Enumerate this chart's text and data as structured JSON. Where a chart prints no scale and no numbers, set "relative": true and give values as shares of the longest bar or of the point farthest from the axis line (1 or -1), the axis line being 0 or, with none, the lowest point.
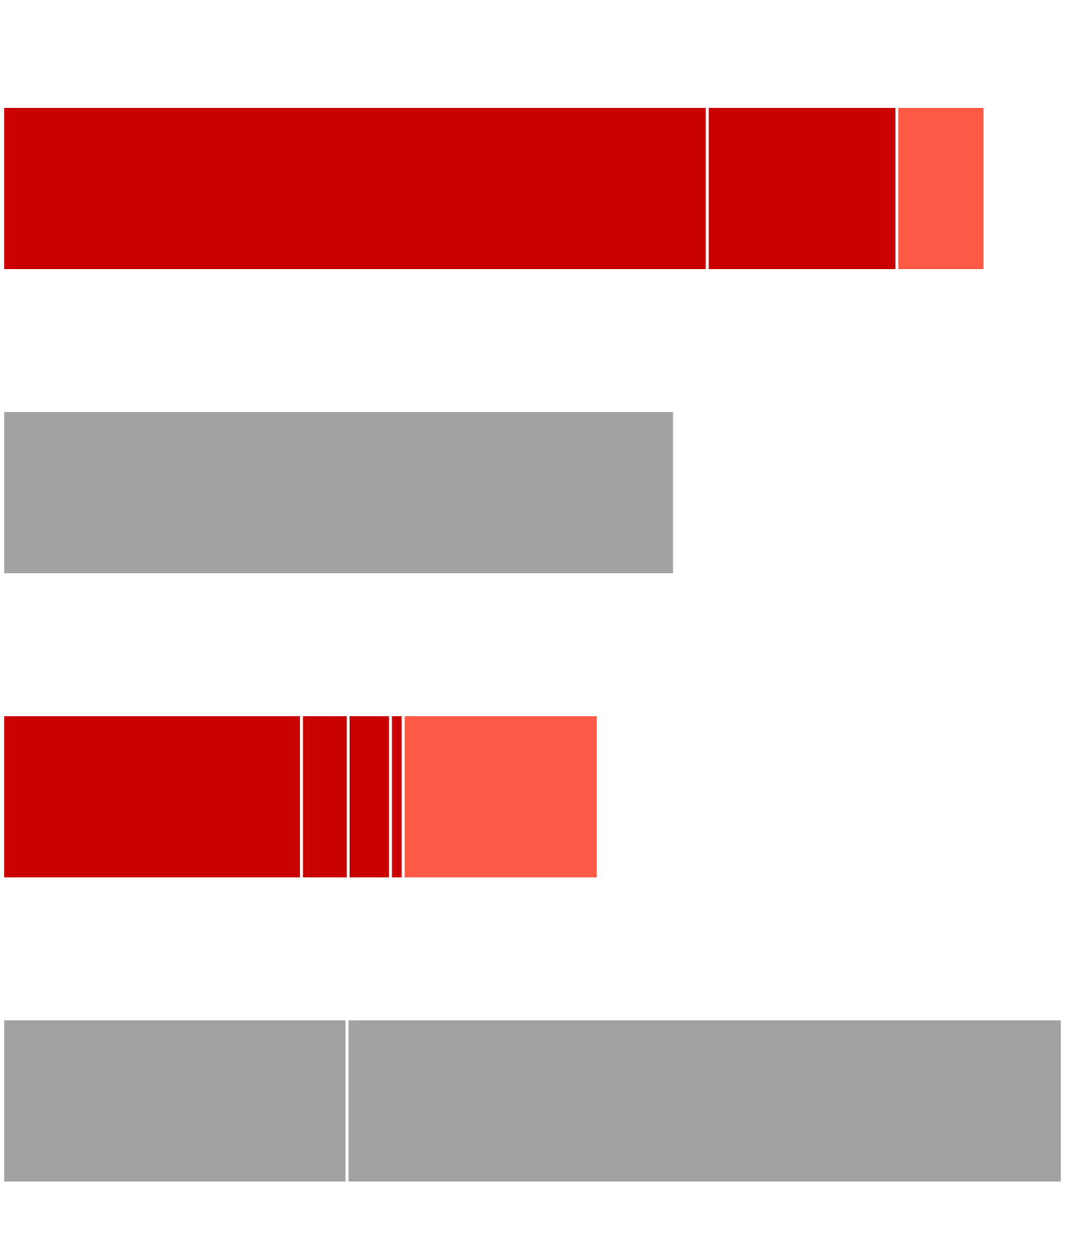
{
  "chart_data": {
    "type": "bar",
    "orientation": "horizontal",
    "stacked": true,
    "relative": true,
    "categories": [
      null,
      null,
      null,
      null
    ],
    "series": [
      {
        "values": [
          0.665,
          0.634,
          0.282,
          0.325
        ],
        "colors": [
          "#c80000",
          "#a2a2a2",
          "#c80000",
          "#a2a2a2"
        ]
      },
      {
        "values": [
          0.179,
          null,
          0.044,
          0.675
        ],
        "colors": [
          "#c80000",
          "#a2a2a2",
          "#c80000",
          "#a2a2a2"
        ]
      },
      {
        "values": [
          0.083,
          null,
          0.04,
          null
        ],
        "colors": [
          "#ff5a46",
          "#a2a2a2",
          "#c80000",
          "#a2a2a2"
        ]
      },
      {
        "values": [
          null,
          null,
          0.012,
          null
        ],
        "colors": [
          "#c80000",
          "#c80000",
          "#c80000",
          "#c80000"
        ]
      },
      {
        "values": [
          null,
          null,
          0.184,
          null
        ],
        "colors": [
          "#ff5a46",
          "#ff5a46",
          "#ff5a46",
          "#ff5a46"
        ]
      }
    ]
  }
}
